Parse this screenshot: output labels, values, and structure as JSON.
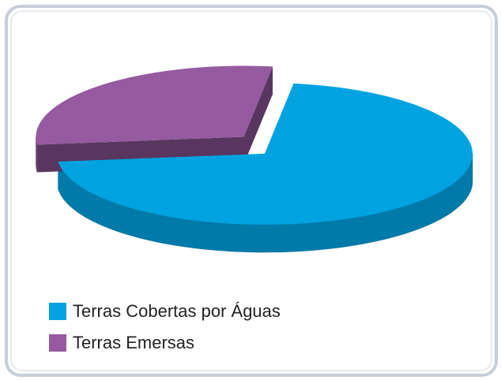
{
  "chart_data": {
    "type": "pie3d",
    "categories": [
      "Terras Cobertas por Águas",
      "Terras Emersas"
    ],
    "values": [
      71,
      29
    ],
    "colors": [
      "#00a3e0",
      "#955aa0"
    ],
    "legend": "bottom-left"
  }
}
